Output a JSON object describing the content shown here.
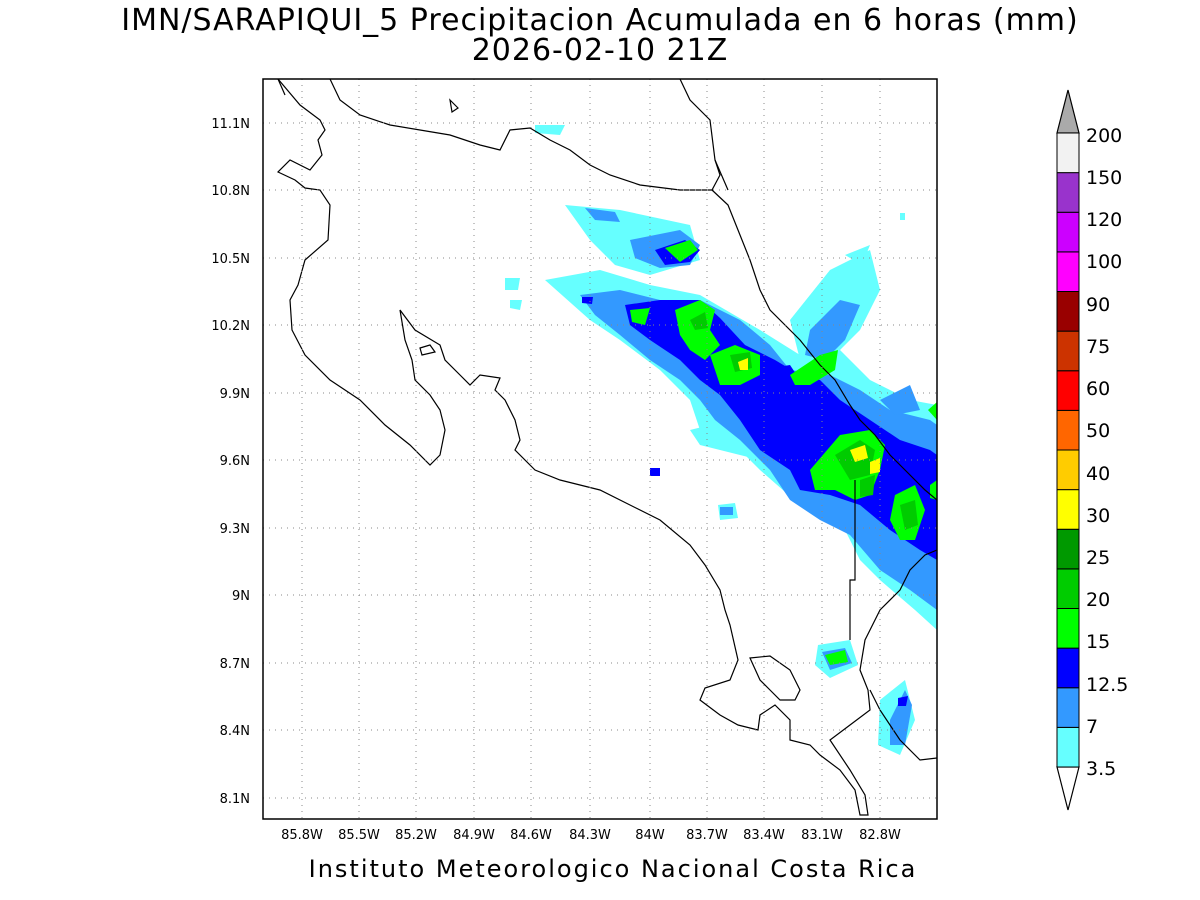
{
  "title_line1": "IMN/SARAPIQUI_5 Precipitacion Acumulada en 6 horas (mm)",
  "title_line2": "2026-02-10 21Z",
  "footer": "Instituto Meteorologico Nacional Costa Rica",
  "axes": {
    "lat_labels": [
      "11.1N",
      "10.8N",
      "10.5N",
      "10.2N",
      "9.9N",
      "9.6N",
      "9.3N",
      "9N",
      "8.7N",
      "8.4N",
      "8.1N"
    ],
    "lon_labels": [
      "85.8W",
      "85.5W",
      "85.2W",
      "84.9W",
      "84.6W",
      "84.3W",
      "84W",
      "83.7W",
      "83.4W",
      "83.1W",
      "82.8W"
    ],
    "grid": "dotted"
  },
  "colorbar": {
    "levels": [
      "3.5",
      "7",
      "12.5",
      "15",
      "20",
      "25",
      "30",
      "40",
      "50",
      "60",
      "75",
      "90",
      "100",
      "120",
      "150",
      "200"
    ],
    "colors": [
      "#66ffff",
      "#3399ff",
      "#0000ff",
      "#00ff00",
      "#00cc00",
      "#009900",
      "#ffff00",
      "#ffcc00",
      "#ff6600",
      "#ff0000",
      "#cc3300",
      "#990000",
      "#ff00ff",
      "#cc00ff",
      "#9933cc",
      "#f2f2f2"
    ],
    "top_arrow_color": "#aaaaaa",
    "bottom_arrow_color": "#ffffff"
  }
}
